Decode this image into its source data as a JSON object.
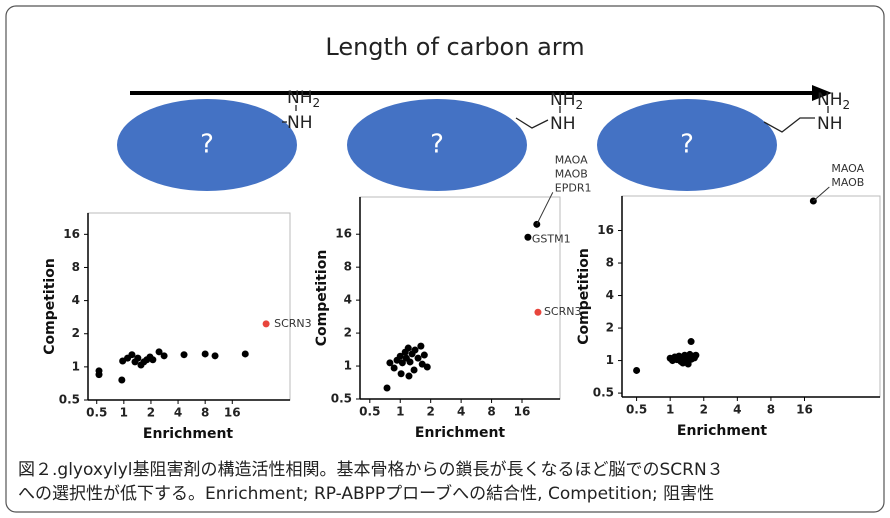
{
  "header": {
    "arrow_label": "Length of carbon arm"
  },
  "molecules": [
    {
      "label": "?",
      "amine": "NH",
      "amine_sub": "2",
      "imine": "NH"
    },
    {
      "label": "?",
      "amine": "NH",
      "amine_sub": "2",
      "imine": "NH"
    },
    {
      "label": "?",
      "amine": "NH",
      "amine_sub": "2",
      "imine": "NH"
    }
  ],
  "chart_data": [
    {
      "type": "scatter",
      "x_label": "Enrichment",
      "y_label": "Competition",
      "log_x": true,
      "log_y": true,
      "xlim": [
        0.4,
        70
      ],
      "xticks": [
        0.5,
        1,
        2,
        4,
        8,
        16
      ],
      "ylim": [
        0.5,
        25
      ],
      "yticks": [
        0.5,
        1,
        2,
        4,
        8,
        16
      ],
      "color": "#000000",
      "x": [
        0.53,
        0.53,
        0.95,
        0.97,
        1.1,
        1.23,
        1.33,
        1.43,
        1.55,
        1.67,
        1.8,
        1.95,
        2.1,
        2.46,
        2.8,
        4.66,
        8,
        10.3,
        22.3
      ],
      "y": [
        0.92,
        0.85,
        0.76,
        1.13,
        1.2,
        1.29,
        1.11,
        1.2,
        1.04,
        1.11,
        1.16,
        1.23,
        1.16,
        1.37,
        1.26,
        1.29,
        1.31,
        1.26,
        1.31
      ],
      "highlights": [
        {
          "x": 38,
          "y": 2.46,
          "color": "#e8453c",
          "label": [
            "SCRN3"
          ]
        }
      ]
    },
    {
      "type": "scatter",
      "x_label": "Enrichment",
      "y_label": "Competition",
      "log_x": true,
      "log_y": true,
      "xlim": [
        0.4,
        38
      ],
      "xticks": [
        0.5,
        1,
        2,
        4,
        8,
        16
      ],
      "ylim": [
        0.5,
        35
      ],
      "yticks": [
        0.5,
        1,
        2,
        4,
        8,
        16
      ],
      "color": "#000000",
      "x": [
        0.74,
        0.79,
        0.87,
        0.93,
        1,
        1.05,
        1.12,
        1.15,
        1.2,
        1.25,
        1.31,
        1.37,
        1.4,
        1.5,
        1.6,
        1.65,
        1.73,
        1.02,
        1.22,
        1.85
      ],
      "y": [
        0.63,
        1.07,
        0.96,
        1.13,
        1.23,
        1.07,
        1.34,
        1.18,
        1.46,
        1.09,
        1.29,
        0.92,
        1.4,
        1.18,
        1.52,
        1.04,
        1.26,
        0.85,
        0.81,
        0.98
      ],
      "highlights": [
        {
          "x": 18.3,
          "y": 15,
          "color": "#000000",
          "label": [
            "GSTM1"
          ]
        },
        {
          "x": 22.4,
          "y": 19.7,
          "color": "#000000",
          "label": [
            "MAOA",
            "MAOB",
            "EPDR1"
          ]
        },
        {
          "x": 23,
          "y": 3.1,
          "color": "#e8453c",
          "label": [
            "SCRN3"
          ]
        }
      ]
    },
    {
      "type": "scatter",
      "x_label": "Enrichment",
      "y_label": "Competition",
      "log_x": true,
      "log_y": true,
      "xlim": [
        0.37,
        76
      ],
      "xticks": [
        0.5,
        1,
        2,
        4,
        8,
        16
      ],
      "ylim": [
        0.46,
        33.4
      ],
      "yticks": [
        0.5,
        1,
        2,
        4,
        8,
        16
      ],
      "color": "#000000",
      "x": [
        0.5,
        1.0,
        1.05,
        1.1,
        1.15,
        1.2,
        1.25,
        1.3,
        1.35,
        1.4,
        1.45,
        1.5,
        1.55,
        1.6,
        1.65,
        1.7,
        1.54,
        1.3,
        1.45
      ],
      "y": [
        0.81,
        1.05,
        1.0,
        1.08,
        1.02,
        1.1,
        0.98,
        1.06,
        1.12,
        1.0,
        1.08,
        1.14,
        1.03,
        1.1,
        1.06,
        1.12,
        1.5,
        0.95,
        0.93
      ],
      "highlights": [
        {
          "x": 19.2,
          "y": 30,
          "color": "#000000",
          "label": [
            "MAOA",
            "MAOB"
          ]
        }
      ]
    }
  ],
  "caption": [
    "図２.glyoxylyl基阻害剤の構造活性相関。基本骨格からの鎖長が長くなるほど脳でのSCRN３",
    "への選択性が低下する。Enrichment; RP-ABPPプローブへの結合性, Competition; 阻害性"
  ]
}
